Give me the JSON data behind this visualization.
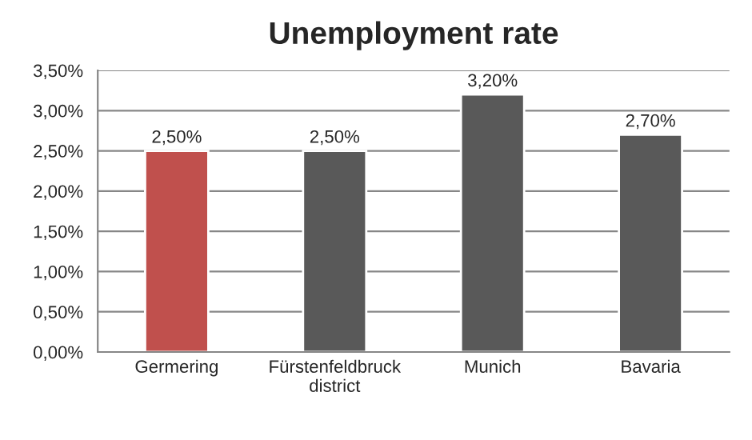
{
  "chart_data": {
    "type": "bar",
    "title": "Unemployment rate",
    "categories": [
      "Germering",
      "Fürstenfeldbruck\ndistrict",
      "Munich",
      "Bavaria"
    ],
    "values": [
      2.5,
      2.5,
      3.2,
      2.7
    ],
    "colors": [
      "#c0504d",
      "#595959",
      "#595959",
      "#595959"
    ],
    "value_labels": [
      "2,50%",
      "2,50%",
      "3,20%",
      "2,70%"
    ],
    "ylim": [
      0,
      3.5
    ],
    "yticks": [
      {
        "value": 0,
        "label": "0,00%"
      },
      {
        "value": 0.5,
        "label": "0,50%"
      },
      {
        "value": 1,
        "label": "1,00%"
      },
      {
        "value": 1.5,
        "label": "1,50%"
      },
      {
        "value": 2,
        "label": "2,00%"
      },
      {
        "value": 2.5,
        "label": "2,50%"
      },
      {
        "value": 3,
        "label": "3,00%"
      },
      {
        "value": 3.5,
        "label": "3,50%"
      }
    ],
    "grid": "y",
    "legend": false
  }
}
